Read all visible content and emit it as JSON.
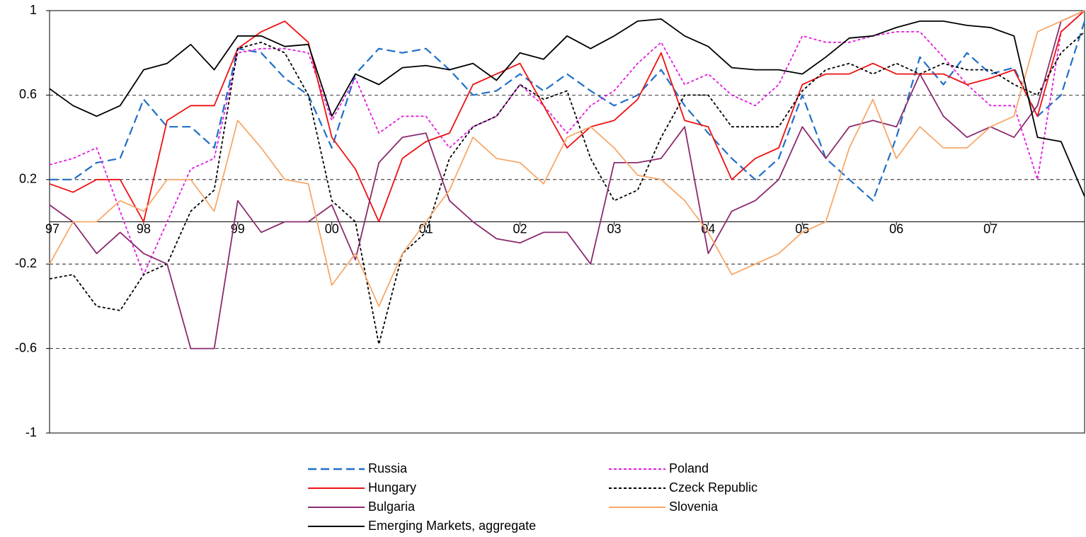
{
  "chart_data": {
    "type": "line",
    "x": [
      1997,
      1997.25,
      1997.5,
      1997.75,
      1998,
      1998.25,
      1998.5,
      1998.75,
      1999,
      1999.25,
      1999.5,
      1999.75,
      2000,
      2000.25,
      2000.5,
      2000.75,
      2001,
      2001.25,
      2001.5,
      2001.75,
      2002,
      2002.25,
      2002.5,
      2002.75,
      2003,
      2003.25,
      2003.5,
      2003.75,
      2004,
      2004.25,
      2004.5,
      2004.75,
      2005,
      2005.25,
      2005.5,
      2005.75,
      2006,
      2006.25,
      2006.5,
      2006.75,
      2007,
      2007.25,
      2007.5,
      2007.75,
      2008
    ],
    "xlim": [
      1997,
      2008
    ],
    "xticks": [
      {
        "value": 1997,
        "label": "97"
      },
      {
        "value": 1998,
        "label": "98"
      },
      {
        "value": 1999,
        "label": "99"
      },
      {
        "value": 2000,
        "label": "00"
      },
      {
        "value": 2001,
        "label": "01"
      },
      {
        "value": 2002,
        "label": "02"
      },
      {
        "value": 2003,
        "label": "03"
      },
      {
        "value": 2004,
        "label": "04"
      },
      {
        "value": 2005,
        "label": "05"
      },
      {
        "value": 2006,
        "label": "06"
      },
      {
        "value": 2007,
        "label": "07"
      }
    ],
    "ylim": [
      -1,
      1
    ],
    "yticks": [
      1,
      0.6,
      0.2,
      -0.2,
      -0.6,
      -1
    ],
    "grid": true,
    "series": [
      {
        "name": "Russia",
        "color": "#1f6fc8",
        "line_style": "dashed",
        "values": [
          0.2,
          0.2,
          0.28,
          0.3,
          0.58,
          0.45,
          0.45,
          0.35,
          0.82,
          0.8,
          0.68,
          0.6,
          0.35,
          0.7,
          0.82,
          0.8,
          0.82,
          0.72,
          0.6,
          0.62,
          0.7,
          0.62,
          0.7,
          0.62,
          0.55,
          0.6,
          0.72,
          0.55,
          0.42,
          0.3,
          0.2,
          0.3,
          0.6,
          0.3,
          0.2,
          0.1,
          0.4,
          0.78,
          0.65,
          0.8,
          0.7,
          0.73,
          0.5,
          0.6,
          0.95
        ]
      },
      {
        "name": "Poland",
        "color": "#e21ce0",
        "line_style": "dotted",
        "values": [
          0.27,
          0.3,
          0.35,
          0.05,
          -0.25,
          0.0,
          0.25,
          0.3,
          0.8,
          0.82,
          0.82,
          0.8,
          0.48,
          0.68,
          0.42,
          0.5,
          0.5,
          0.35,
          0.45,
          0.5,
          0.65,
          0.55,
          0.42,
          0.55,
          0.62,
          0.75,
          0.85,
          0.65,
          0.7,
          0.6,
          0.55,
          0.65,
          0.88,
          0.85,
          0.85,
          0.88,
          0.9,
          0.9,
          0.78,
          0.65,
          0.55,
          0.55,
          0.2,
          0.9,
          1.0
        ]
      },
      {
        "name": "Hungary",
        "color": "#ee1111",
        "line_style": "solid",
        "values": [
          0.18,
          0.14,
          0.2,
          0.2,
          0.0,
          0.48,
          0.55,
          0.55,
          0.82,
          0.9,
          0.95,
          0.85,
          0.4,
          0.25,
          0.0,
          0.3,
          0.38,
          0.42,
          0.65,
          0.7,
          0.75,
          0.55,
          0.35,
          0.45,
          0.48,
          0.58,
          0.8,
          0.48,
          0.45,
          0.2,
          0.3,
          0.35,
          0.65,
          0.7,
          0.7,
          0.75,
          0.7,
          0.7,
          0.7,
          0.65,
          0.68,
          0.72,
          0.5,
          0.9,
          1.0
        ]
      },
      {
        "name": "Czeck Republic",
        "color": "#000000",
        "line_style": "dotted",
        "values": [
          -0.27,
          -0.25,
          -0.4,
          -0.42,
          -0.25,
          -0.2,
          0.05,
          0.15,
          0.82,
          0.85,
          0.8,
          0.6,
          0.1,
          0.0,
          -0.58,
          -0.15,
          -0.05,
          0.3,
          0.45,
          0.5,
          0.65,
          0.58,
          0.62,
          0.3,
          0.1,
          0.15,
          0.4,
          0.6,
          0.6,
          0.45,
          0.45,
          0.45,
          0.62,
          0.72,
          0.75,
          0.7,
          0.75,
          0.7,
          0.75,
          0.72,
          0.72,
          0.65,
          0.6,
          0.8,
          0.9
        ]
      },
      {
        "name": "Bulgaria",
        "color": "#8b2a6e",
        "line_style": "solid",
        "values": [
          0.08,
          0.0,
          -0.15,
          -0.05,
          -0.15,
          -0.2,
          -0.6,
          -0.6,
          0.1,
          -0.05,
          0.0,
          0.0,
          0.08,
          -0.18,
          0.28,
          0.4,
          0.42,
          0.1,
          0.0,
          -0.08,
          -0.1,
          -0.05,
          -0.05,
          -0.2,
          0.28,
          0.28,
          0.3,
          0.45,
          -0.15,
          0.05,
          0.1,
          0.2,
          0.45,
          0.3,
          0.45,
          0.48,
          0.45,
          0.7,
          0.5,
          0.4,
          0.45,
          0.4,
          0.55,
          0.95,
          1.0
        ]
      },
      {
        "name": "Slovenia",
        "color": "#f7a86a",
        "line_style": "solid",
        "values": [
          -0.2,
          0.0,
          0.0,
          0.1,
          0.05,
          0.2,
          0.2,
          0.05,
          0.48,
          0.35,
          0.2,
          0.18,
          -0.3,
          -0.15,
          -0.4,
          -0.15,
          0.0,
          0.15,
          0.4,
          0.3,
          0.28,
          0.18,
          0.4,
          0.45,
          0.35,
          0.22,
          0.2,
          0.1,
          -0.05,
          -0.25,
          -0.2,
          -0.15,
          -0.05,
          0.0,
          0.35,
          0.58,
          0.3,
          0.45,
          0.35,
          0.35,
          0.45,
          0.5,
          0.9,
          0.95,
          1.0
        ]
      },
      {
        "name": "Emerging Markets, aggregate",
        "color": "#000000",
        "line_style": "solid",
        "values": [
          0.63,
          0.55,
          0.5,
          0.55,
          0.72,
          0.75,
          0.84,
          0.72,
          0.88,
          0.88,
          0.83,
          0.84,
          0.5,
          0.7,
          0.65,
          0.73,
          0.74,
          0.72,
          0.75,
          0.67,
          0.8,
          0.77,
          0.88,
          0.82,
          0.88,
          0.95,
          0.96,
          0.88,
          0.83,
          0.73,
          0.72,
          0.72,
          0.7,
          0.78,
          0.87,
          0.88,
          0.92,
          0.95,
          0.95,
          0.93,
          0.92,
          0.88,
          0.4,
          0.38,
          0.12
        ]
      }
    ]
  }
}
